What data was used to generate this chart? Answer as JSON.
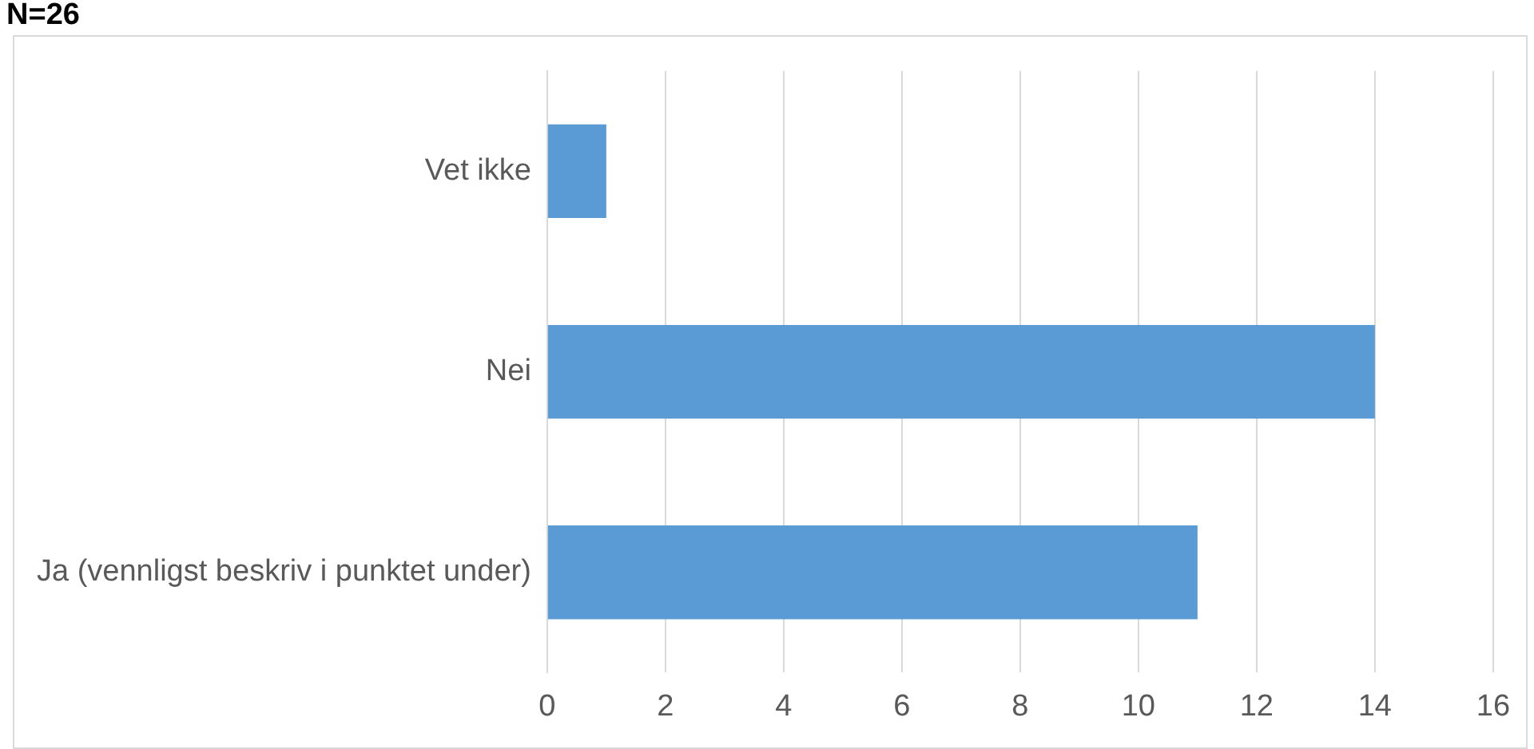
{
  "chart_data": {
    "type": "bar",
    "title": "N=26",
    "orientation": "horizontal",
    "categories": [
      "Vet ikke",
      "Nei",
      "Ja (vennligst beskriv i punktet under)"
    ],
    "values": [
      1,
      14,
      11
    ],
    "color": "#5b9bd5",
    "xlim": [
      0,
      16
    ],
    "xticks": [
      0,
      2,
      4,
      6,
      8,
      10,
      12,
      14,
      16
    ],
    "grid": "x",
    "legend": false
  }
}
